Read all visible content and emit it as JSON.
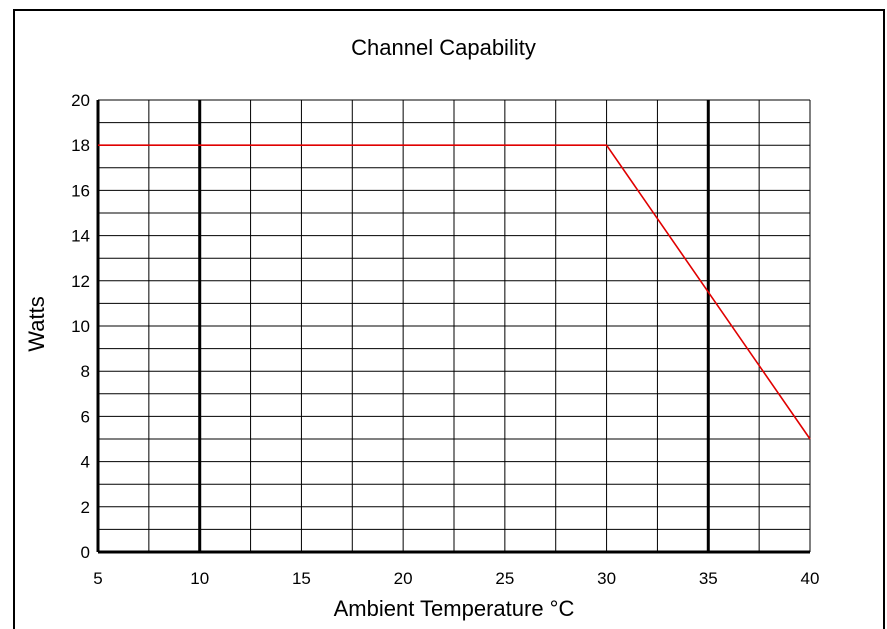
{
  "chart_data": {
    "type": "line",
    "title": "Channel Capability",
    "xlabel": "Ambient Temperature °C",
    "ylabel": "Watts",
    "xlim": [
      5,
      40
    ],
    "ylim": [
      0,
      20
    ],
    "x_ticks": [
      5,
      10,
      15,
      20,
      25,
      30,
      35,
      40
    ],
    "y_ticks": [
      0,
      2,
      4,
      6,
      8,
      10,
      12,
      14,
      16,
      18,
      20
    ],
    "x_minor_step": 2.5,
    "y_minor_step": 1,
    "x_major_bold": [
      10,
      35
    ],
    "grid": true,
    "series": [
      {
        "color": "#e00000",
        "x": [
          5,
          30,
          40
        ],
        "y": [
          18,
          18,
          5
        ]
      }
    ]
  }
}
